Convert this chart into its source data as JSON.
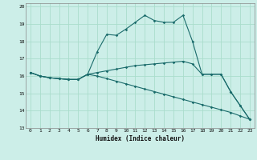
{
  "xlabel": "Humidex (Indice chaleur)",
  "bg_color": "#cceee8",
  "grid_color": "#aaddcc",
  "line_color": "#1a6b6b",
  "xlim": [
    -0.5,
    23.5
  ],
  "ylim": [
    13,
    20.2
  ],
  "yticks": [
    13,
    14,
    15,
    16,
    17,
    18,
    19,
    20
  ],
  "xticks": [
    0,
    1,
    2,
    3,
    4,
    5,
    6,
    7,
    8,
    9,
    10,
    11,
    12,
    13,
    14,
    15,
    16,
    17,
    18,
    19,
    20,
    21,
    22,
    23
  ],
  "lines": [
    {
      "x": [
        0,
        1,
        2,
        3,
        4,
        5,
        6,
        7,
        8,
        9,
        10,
        11,
        12,
        13,
        14,
        15,
        16,
        17,
        18,
        19,
        20,
        21,
        22,
        23
      ],
      "y": [
        16.2,
        16.0,
        15.9,
        15.85,
        15.8,
        15.8,
        16.1,
        17.4,
        18.4,
        18.35,
        18.7,
        19.1,
        19.5,
        19.2,
        19.1,
        19.1,
        19.5,
        18.0,
        16.1,
        16.1,
        16.1,
        15.1,
        14.3,
        13.5
      ]
    },
    {
      "x": [
        0,
        1,
        2,
        3,
        4,
        5,
        6,
        7,
        8,
        9,
        10,
        11,
        12,
        13,
        14,
        15,
        16,
        17,
        18,
        19,
        20,
        21,
        22,
        23
      ],
      "y": [
        16.2,
        16.0,
        15.9,
        15.85,
        15.8,
        15.8,
        16.1,
        16.2,
        16.3,
        16.4,
        16.5,
        16.6,
        16.65,
        16.7,
        16.75,
        16.8,
        16.85,
        16.7,
        16.1,
        16.1,
        16.1,
        15.1,
        14.3,
        13.5
      ]
    },
    {
      "x": [
        0,
        1,
        2,
        3,
        4,
        5,
        6,
        7,
        8,
        9,
        10,
        11,
        12,
        13,
        14,
        15,
        16,
        17,
        18,
        19,
        20,
        21,
        22,
        23
      ],
      "y": [
        16.2,
        16.0,
        15.9,
        15.85,
        15.8,
        15.8,
        16.1,
        16.0,
        15.85,
        15.7,
        15.55,
        15.4,
        15.25,
        15.1,
        14.95,
        14.8,
        14.65,
        14.5,
        14.35,
        14.2,
        14.05,
        13.9,
        13.7,
        13.5
      ]
    }
  ]
}
